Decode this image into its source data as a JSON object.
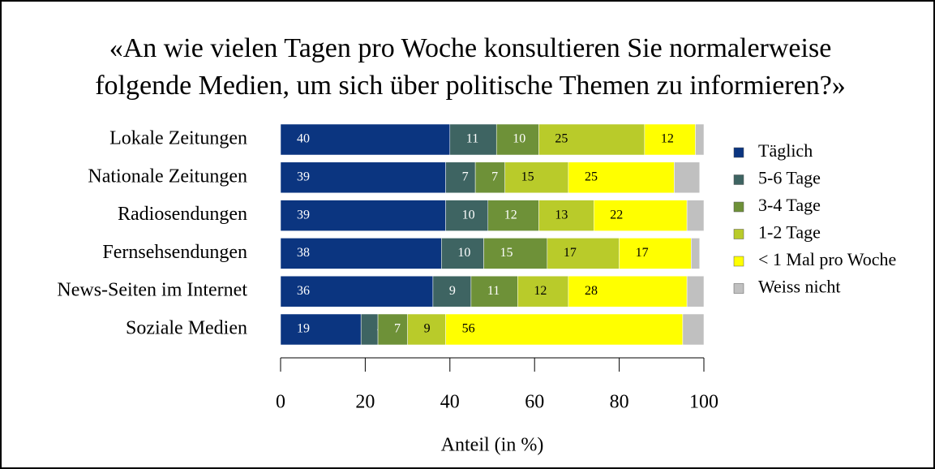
{
  "chart_data": {
    "type": "stacked_barh",
    "title": [
      "«An wie vielen Tagen pro Woche konsultieren Sie normalerweise",
      "folgende Medien, um sich über politische Themen zu informieren?»"
    ],
    "categories": [
      "Lokale Zeitungen",
      "Nationale Zeitungen",
      "Radiosendungen",
      "Fernsehsendungen",
      "News-Seiten im Internet",
      "Soziale Medien"
    ],
    "series": [
      {
        "name": "Täglich",
        "color": "#0b3580",
        "values": [
          40,
          39,
          39,
          38,
          36,
          19
        ]
      },
      {
        "name": "5-6 Tage",
        "color": "#3e6462",
        "values": [
          11,
          7,
          10,
          10,
          9,
          4
        ]
      },
      {
        "name": "3-4 Tage",
        "color": "#6e9138",
        "values": [
          10,
          7,
          12,
          15,
          11,
          7
        ]
      },
      {
        "name": "1-2 Tage",
        "color": "#b9cb2a",
        "values": [
          25,
          15,
          13,
          17,
          12,
          9
        ]
      },
      {
        "name": "< 1 Mal pro Woche",
        "color": "#ffff00",
        "values": [
          12,
          25,
          22,
          17,
          28,
          56
        ]
      },
      {
        "name": "Weiss nicht",
        "color": "#c0c0c0",
        "values": [
          2,
          6,
          4,
          2,
          4,
          5
        ],
        "show_labels": false
      }
    ],
    "xlim": [
      0,
      100
    ],
    "xticks": [
      0,
      20,
      40,
      60,
      80,
      100
    ],
    "xlabel": "Anteil (in %)",
    "legend": "right"
  }
}
